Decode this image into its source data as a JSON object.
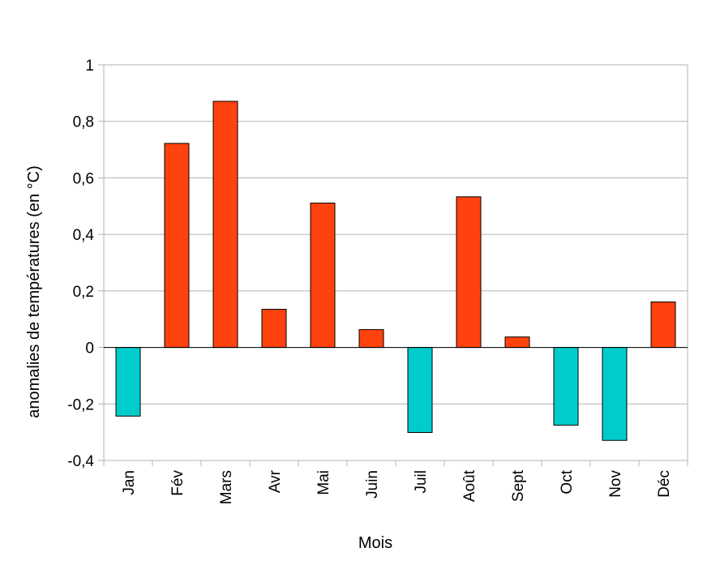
{
  "chart_data": {
    "type": "bar",
    "xlabel": "Mois",
    "ylabel": "anomalies de températures (en °C)",
    "categories": [
      "Jan",
      "Fév",
      "Mars",
      "Avr",
      "Mai",
      "Juin",
      "Juil",
      "Août",
      "Sept",
      "Oct",
      "Nov",
      "Déc"
    ],
    "values": [
      -0.243,
      0.722,
      0.871,
      0.135,
      0.511,
      0.063,
      -0.301,
      0.533,
      0.037,
      -0.275,
      -0.329,
      0.161
    ],
    "ylim": [
      -0.4,
      1
    ],
    "yticks": [
      "-0,4",
      "-0,2",
      "0",
      "0,2",
      "0,4",
      "0,6",
      "0,8",
      "1"
    ],
    "ytick_values": [
      -0.4,
      -0.2,
      0,
      0.2,
      0.4,
      0.6,
      0.8,
      1
    ],
    "grid": true,
    "colors": {
      "positive": "#ff420e",
      "negative": "#00cccc",
      "grid": "#b3b3b3",
      "axis": "#b3b3b3"
    }
  }
}
